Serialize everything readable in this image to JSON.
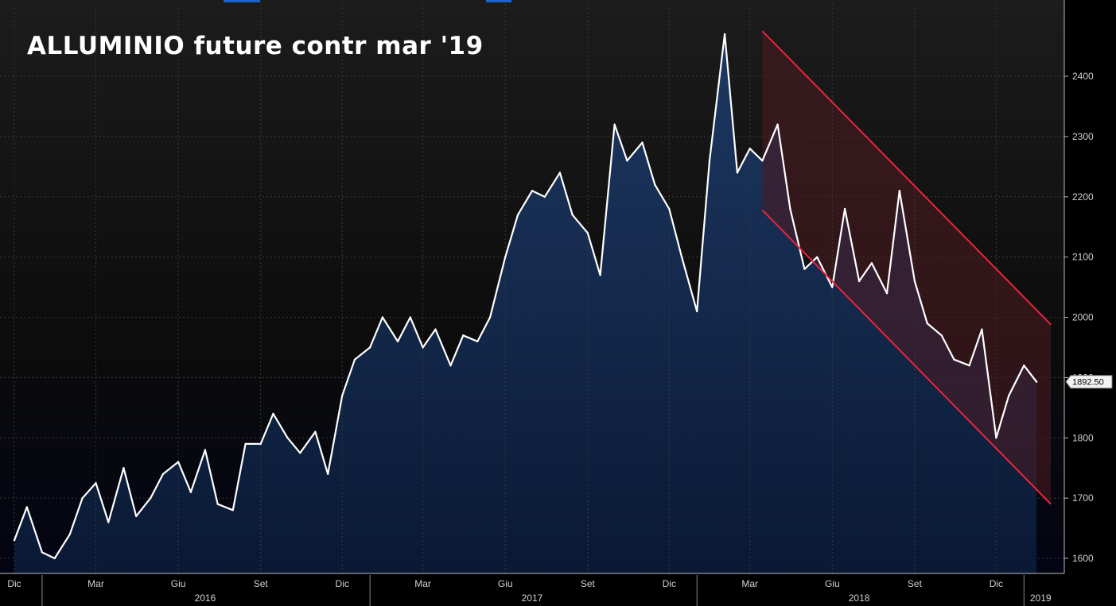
{
  "title": "ALLUMINIO future contr mar '19",
  "last_value_label": "1892.50",
  "colors": {
    "line": "#ffffff",
    "channel_line": "#e8253d",
    "channel_fill": "#4a1a22",
    "area_top": "#1e3a66",
    "area_bottom": "#0a1a36",
    "grid": "#3a3a3a",
    "axis_text": "#d0d0d0"
  },
  "chart_data": {
    "type": "line",
    "title": "ALLUMINIO future contr mar '19",
    "ylim": [
      1575,
      2520
    ],
    "yticks": [
      1600,
      1700,
      1800,
      1900,
      2000,
      2100,
      2200,
      2300,
      2400
    ],
    "grid": true,
    "x_month_labels": [
      "Dic",
      "Mar",
      "Giu",
      "Set",
      "Dic",
      "Mar",
      "Giu",
      "Set",
      "Dic",
      "Mar",
      "Giu",
      "Set",
      "Dic"
    ],
    "x_year_labels": [
      "2016",
      "2017",
      "2018",
      "2019"
    ],
    "series": [
      {
        "x": [
          "2015-12-01",
          "2015-12-15",
          "2016-01-01",
          "2016-01-15",
          "2016-02-01",
          "2016-02-15",
          "2016-03-01",
          "2016-03-15",
          "2016-04-01",
          "2016-04-15",
          "2016-05-01",
          "2016-05-15",
          "2016-06-01",
          "2016-06-15",
          "2016-07-01",
          "2016-07-15",
          "2016-08-01",
          "2016-08-15",
          "2016-09-01",
          "2016-09-15",
          "2016-10-01",
          "2016-10-15",
          "2016-11-01",
          "2016-11-15",
          "2016-12-01",
          "2016-12-15",
          "2017-01-01",
          "2017-01-15",
          "2017-02-01",
          "2017-02-15",
          "2017-03-01",
          "2017-03-15",
          "2017-04-01",
          "2017-04-15",
          "2017-05-01",
          "2017-05-15",
          "2017-06-01",
          "2017-06-15",
          "2017-07-01",
          "2017-07-15",
          "2017-08-01",
          "2017-08-15",
          "2017-09-01",
          "2017-09-15",
          "2017-10-01",
          "2017-10-15",
          "2017-11-01",
          "2017-11-15",
          "2017-12-01",
          "2017-12-15",
          "2018-01-01",
          "2018-01-15",
          "2018-02-01",
          "2018-02-15",
          "2018-03-01",
          "2018-03-15",
          "2018-04-01",
          "2018-04-15",
          "2018-05-01",
          "2018-05-15",
          "2018-06-01",
          "2018-06-15",
          "2018-07-01",
          "2018-07-15",
          "2018-08-01",
          "2018-08-15",
          "2018-09-01",
          "2018-09-15",
          "2018-10-01",
          "2018-10-15",
          "2018-11-01",
          "2018-11-15",
          "2018-12-01",
          "2018-12-15",
          "2019-01-01",
          "2019-01-15"
        ],
        "values": [
          1630,
          1685,
          1610,
          1600,
          1640,
          1700,
          1725,
          1660,
          1750,
          1670,
          1700,
          1740,
          1760,
          1710,
          1780,
          1690,
          1680,
          1790,
          1790,
          1840,
          1800,
          1775,
          1810,
          1740,
          1870,
          1930,
          1950,
          2000,
          1960,
          2000,
          1950,
          1980,
          1920,
          1970,
          1960,
          2000,
          2100,
          2170,
          2210,
          2200,
          2240,
          2170,
          2140,
          2070,
          2320,
          2260,
          2290,
          2220,
          2180,
          2100,
          2010,
          2260,
          2470,
          2240,
          2280,
          2260,
          2320,
          2180,
          2080,
          2100,
          2050,
          2180,
          2060,
          2090,
          2040,
          2210,
          2060,
          1990,
          1970,
          1930,
          1920,
          1980,
          1800,
          1870,
          1920,
          1893
        ]
      }
    ],
    "channel": {
      "upper": {
        "start": [
          "2018-03-15",
          2475
        ],
        "end": [
          "2019-01-31",
          1988
        ]
      },
      "lower": {
        "start": [
          "2018-03-15",
          2178
        ],
        "end": [
          "2019-01-31",
          1690
        ]
      }
    }
  }
}
